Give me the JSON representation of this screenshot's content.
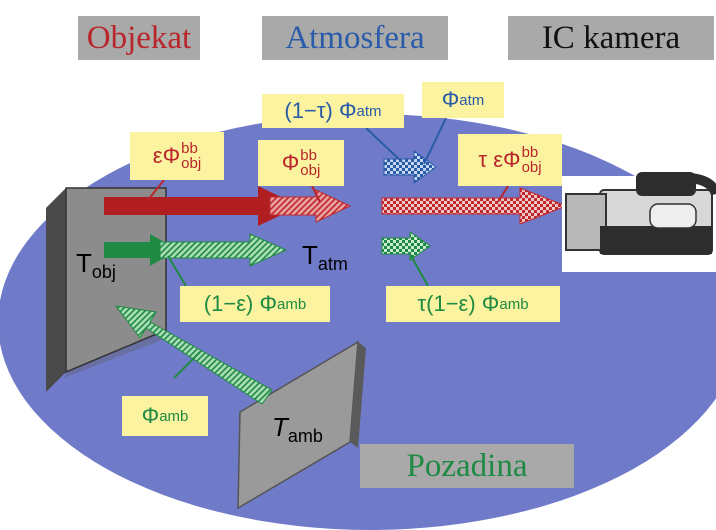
{
  "headers": {
    "objekat": "Objekat",
    "atmosfera": "Atmosfera",
    "kamera": "IC kamera",
    "pozadina": "Pozadina"
  },
  "labels": {
    "phi": "Φ",
    "bb": "bb",
    "obj": "obj",
    "atm": "atm",
    "amb": "amb",
    "eps": "ε",
    "tau": "τ",
    "one_minus_tau": "(1−τ)",
    "one_minus_eps": "(1−ε)",
    "tau_one_minus_eps": "τ(1−ε)",
    "T": "T",
    "T_obj_sub": "obj",
    "T_atm_sub": "atm",
    "T_amb_sub": "amb"
  },
  "colors": {
    "ellipse": "#6f7bc9",
    "red": "#b8262b",
    "green": "#1f8a44",
    "blue": "#2a5ba8",
    "box": "#fbf3a0",
    "header_bg": "#a9a9a9"
  }
}
